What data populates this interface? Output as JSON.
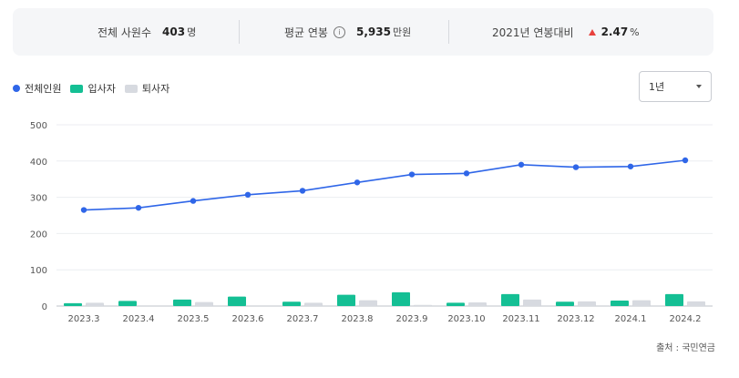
{
  "stats": {
    "employees": {
      "label": "전체 사원수",
      "value": "403",
      "unit": "명"
    },
    "salary": {
      "label": "평균 연봉",
      "value": "5,935",
      "unit": "만원",
      "icon": "info-icon"
    },
    "change": {
      "label": "2021년 연봉대비",
      "value": "2.47",
      "unit": "%",
      "direction": "up",
      "color": "#e8413d"
    }
  },
  "legend": {
    "total": "전체인원",
    "hires": "입사자",
    "leavers": "퇴사자"
  },
  "period_select": {
    "value": "1년"
  },
  "source": "출처 : 국민연금",
  "colors": {
    "total": "#2f66e8",
    "hires": "#14bf94",
    "leavers": "#d7dae0"
  },
  "chart_data": {
    "type": "bar+line",
    "categories": [
      "2023.3",
      "2023.4",
      "2023.5",
      "2023.6",
      "2023.7",
      "2023.8",
      "2023.9",
      "2023.10",
      "2023.11",
      "2023.12",
      "2024.1",
      "2024.2"
    ],
    "ylim": [
      0,
      500
    ],
    "yticks": [
      0,
      100,
      200,
      300,
      400,
      500
    ],
    "grid": true,
    "series": [
      {
        "name": "전체인원",
        "type": "line",
        "values": [
          265,
          271,
          290,
          307,
          318,
          341,
          363,
          366,
          390,
          383,
          385,
          402
        ]
      },
      {
        "name": "입사자",
        "type": "bar",
        "values": [
          8,
          14,
          18,
          26,
          12,
          31,
          38,
          9,
          33,
          12,
          15,
          33
        ]
      },
      {
        "name": "퇴사자",
        "type": "bar",
        "values": [
          9,
          0,
          11,
          0,
          9,
          16,
          3,
          10,
          18,
          13,
          16,
          13
        ]
      }
    ]
  }
}
